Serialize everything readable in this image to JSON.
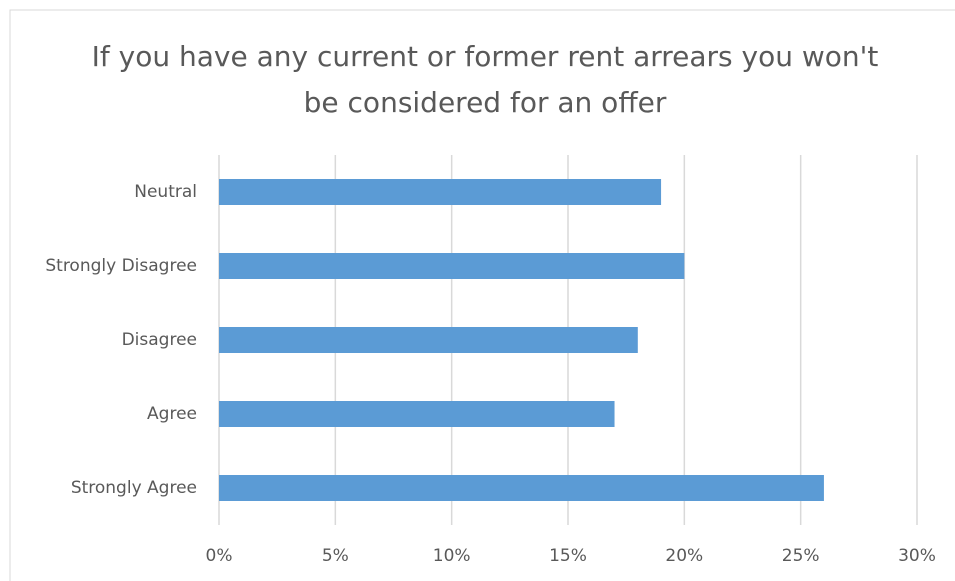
{
  "chart_data": {
    "type": "barh",
    "title": "If you have any current or former rent arrears you won't be considered for an offer",
    "categories": [
      "Neutral",
      "Strongly Disagree",
      "Disagree",
      "Agree",
      "Strongly Agree"
    ],
    "values": [
      19,
      20,
      18,
      17,
      26
    ],
    "color": "#5b9bd5",
    "xlim": [
      0,
      30
    ],
    "xticks": [
      {
        "value": 0,
        "label": "0%"
      },
      {
        "value": 5,
        "label": "5%"
      },
      {
        "value": 10,
        "label": "10%"
      },
      {
        "value": 15,
        "label": "15%"
      },
      {
        "value": 20,
        "label": "20%"
      },
      {
        "value": 25,
        "label": "25%"
      },
      {
        "value": 30,
        "label": "30%"
      }
    ],
    "grid": true
  }
}
